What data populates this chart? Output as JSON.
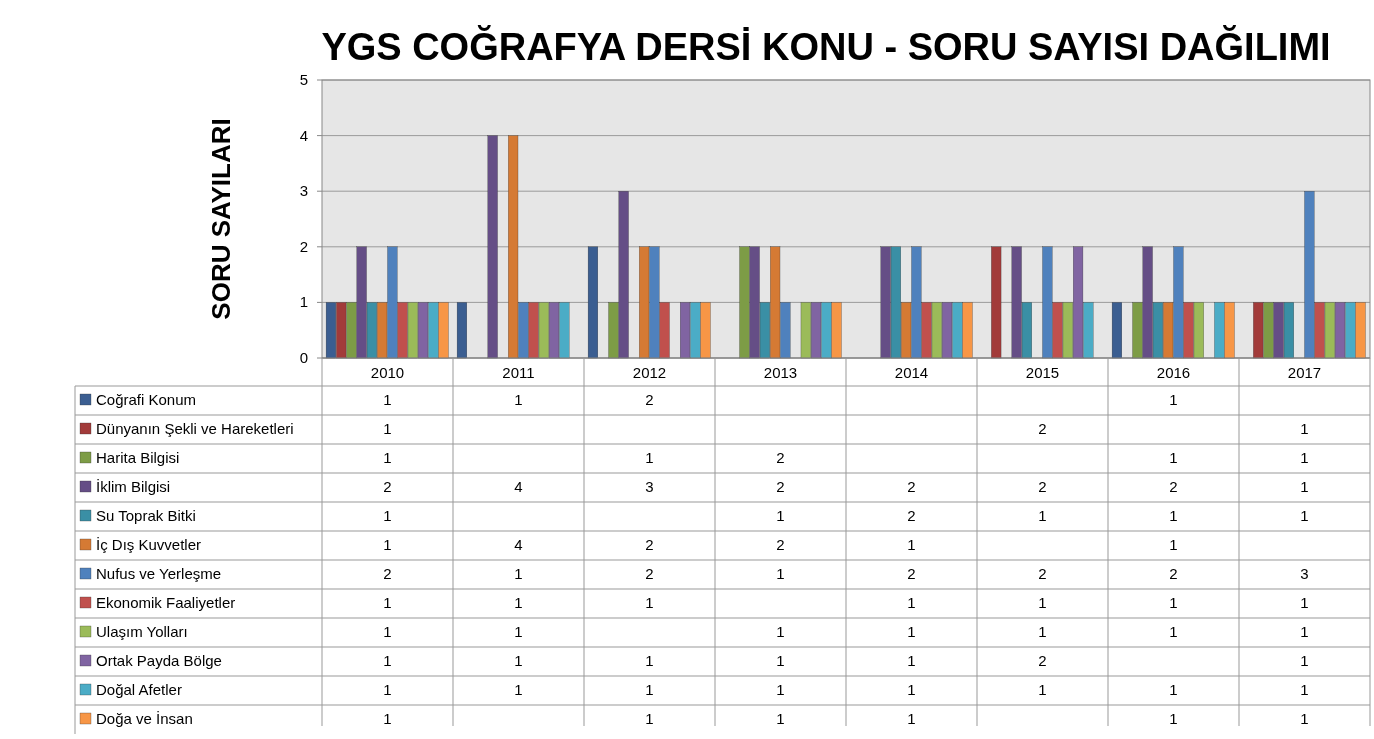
{
  "chart_data": {
    "type": "bar",
    "title": "YGS COĞRAFYA DERSİ KONU - SORU SAYISI DAĞILIMI",
    "ylabel": "SORU SAYILARI",
    "categories": [
      "2010",
      "2011",
      "2012",
      "2013",
      "2014",
      "2015",
      "2016",
      "2017"
    ],
    "ylim": [
      0,
      5
    ],
    "yticks": [
      0,
      1,
      2,
      3,
      4,
      5
    ],
    "grid": "y",
    "legend": "bottom",
    "data_labels": true,
    "series": [
      {
        "name": "Coğrafi Konum",
        "color": "#3b5e91",
        "values": [
          1,
          1,
          2,
          null,
          null,
          null,
          1,
          null
        ]
      },
      {
        "name": "Dünyanın Şekli ve Hareketleri",
        "color": "#a23b3a",
        "values": [
          1,
          null,
          null,
          null,
          null,
          2,
          null,
          1
        ]
      },
      {
        "name": "Harita Bilgisi",
        "color": "#7d9c46",
        "values": [
          1,
          null,
          1,
          2,
          null,
          null,
          1,
          1
        ]
      },
      {
        "name": "İklim Bilgisi",
        "color": "#654e86",
        "values": [
          2,
          4,
          3,
          2,
          2,
          2,
          2,
          1
        ]
      },
      {
        "name": "Su Toprak Bitki",
        "color": "#3a8fa5",
        "values": [
          1,
          null,
          null,
          1,
          2,
          1,
          1,
          1
        ]
      },
      {
        "name": "İç Dış Kuvvetler",
        "color": "#d57a34",
        "values": [
          1,
          4,
          2,
          2,
          1,
          null,
          1,
          null
        ]
      },
      {
        "name": "Nufus ve Yerleşme",
        "color": "#4f81bd",
        "values": [
          2,
          1,
          2,
          1,
          2,
          2,
          2,
          3
        ]
      },
      {
        "name": "Ekonomik Faaliyetler",
        "color": "#c0504d",
        "values": [
          1,
          1,
          1,
          null,
          1,
          1,
          1,
          1
        ]
      },
      {
        "name": "Ulaşım Yolları",
        "color": "#9bbb59",
        "values": [
          1,
          1,
          null,
          1,
          1,
          1,
          1,
          1
        ]
      },
      {
        "name": "Ortak Payda Bölge",
        "color": "#8064a2",
        "values": [
          1,
          1,
          1,
          1,
          1,
          2,
          null,
          1
        ]
      },
      {
        "name": "Doğal Afetler",
        "color": "#4bacc6",
        "values": [
          1,
          1,
          1,
          1,
          1,
          1,
          1,
          1
        ]
      },
      {
        "name": "Doğa ve İnsan",
        "color": "#f79646",
        "values": [
          1,
          null,
          1,
          1,
          1,
          null,
          1,
          1
        ]
      }
    ]
  }
}
